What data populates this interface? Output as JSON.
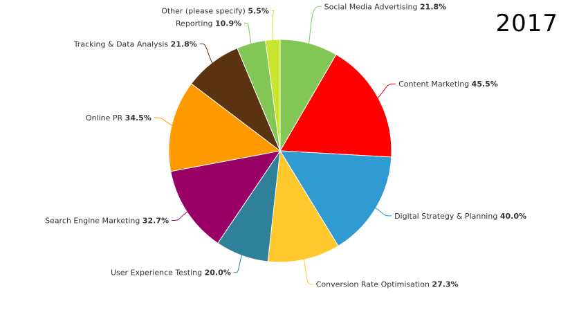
{
  "year_label": "2017",
  "chart_data": {
    "type": "pie",
    "title": "",
    "slices": [
      {
        "label": "Social Media Advertising",
        "value": 21.8,
        "display": "21.8%",
        "color": "#82c755"
      },
      {
        "label": "Content Marketing",
        "value": 45.5,
        "display": "45.5%",
        "color": "#ff0000"
      },
      {
        "label": "Digital Strategy & Planning",
        "value": 40.0,
        "display": "40.0%",
        "color": "#2f9bd0"
      },
      {
        "label": "Conversion Rate Optimisation",
        "value": 27.3,
        "display": "27.3%",
        "color": "#ffc92e"
      },
      {
        "label": "User Experience Testing",
        "value": 20.0,
        "display": "20.0%",
        "color": "#2e8198"
      },
      {
        "label": "Search Engine Marketing",
        "value": 32.7,
        "display": "32.7%",
        "color": "#990066"
      },
      {
        "label": "Online PR",
        "value": 34.5,
        "display": "34.5%",
        "color": "#ff9900"
      },
      {
        "label": "Tracking & Data Analysis",
        "value": 21.8,
        "display": "21.8%",
        "color": "#5c3311"
      },
      {
        "label": "Reporting",
        "value": 10.9,
        "display": "10.9%",
        "color": "#82c755"
      },
      {
        "label": "Other (please specify)",
        "value": 5.5,
        "display": "5.5%",
        "color": "#c9e62e"
      }
    ]
  }
}
